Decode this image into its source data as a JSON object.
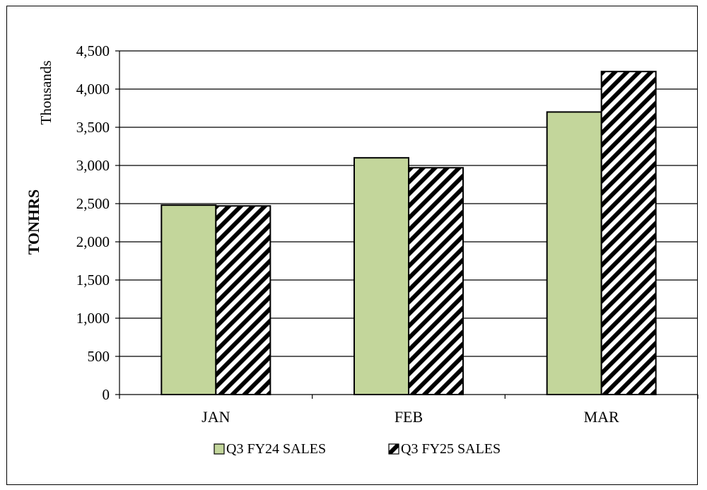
{
  "chart_data": {
    "type": "bar",
    "categories": [
      "JAN",
      "FEB",
      "MAR"
    ],
    "series": [
      {
        "name": "Q3 FY24 SALES",
        "values": [
          2480,
          3100,
          3700
        ],
        "fill": "#c3d69b",
        "pattern": "solid"
      },
      {
        "name": "Q3 FY25 SALES",
        "values": [
          2470,
          2970,
          4230
        ],
        "fill": "#000000",
        "pattern": "diagonal-stripes"
      }
    ],
    "ylabel": "TONHRS",
    "y_unit_label": "Thousands",
    "ylim": [
      0,
      4500
    ],
    "yticks": [
      0,
      500,
      1000,
      1500,
      2000,
      2500,
      3000,
      3500,
      4000,
      4500
    ],
    "ytick_labels": [
      "0",
      "500",
      "1,000",
      "1,500",
      "2,000",
      "2,500",
      "3,000",
      "3,500",
      "4,000",
      "4,500"
    ],
    "grid": true,
    "legend_position": "bottom"
  }
}
